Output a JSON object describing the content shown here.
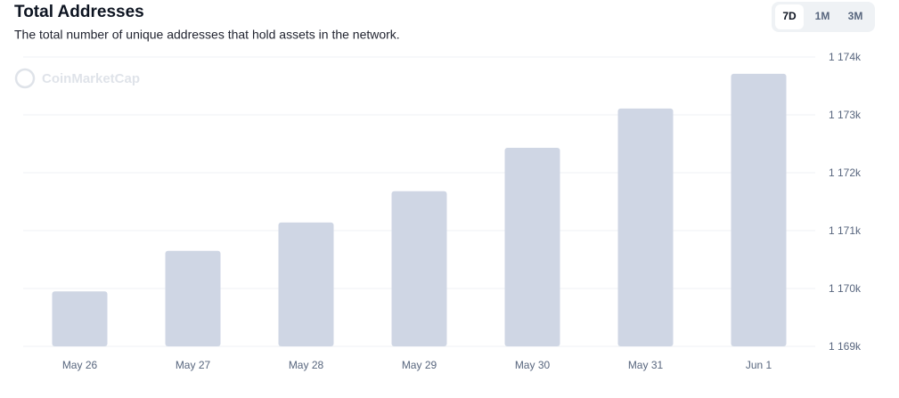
{
  "chart_data": {
    "type": "bar",
    "title": "Total Addresses",
    "subtitle": "The total number of unique addresses that hold assets in the network.",
    "watermark": "CoinMarketCap",
    "buttons": [
      "7D",
      "1M",
      "3M"
    ],
    "active_button": "7D",
    "categories": [
      "May 26",
      "May 27",
      "May 28",
      "May 29",
      "May 30",
      "May 31",
      "Jun 1"
    ],
    "values": [
      1169950,
      1170650,
      1171140,
      1171680,
      1172430,
      1173110,
      1173710
    ],
    "color": "#cfd6e4",
    "ylim": [
      1169000,
      1174000
    ],
    "yticks": [
      {
        "value": 1169000,
        "label": "1 169k"
      },
      {
        "value": 1170000,
        "label": "1 170k"
      },
      {
        "value": 1171000,
        "label": "1 171k"
      },
      {
        "value": 1172000,
        "label": "1 172k"
      },
      {
        "value": 1173000,
        "label": "1 173k"
      },
      {
        "value": 1174000,
        "label": "1 174k"
      }
    ],
    "grid": true
  }
}
